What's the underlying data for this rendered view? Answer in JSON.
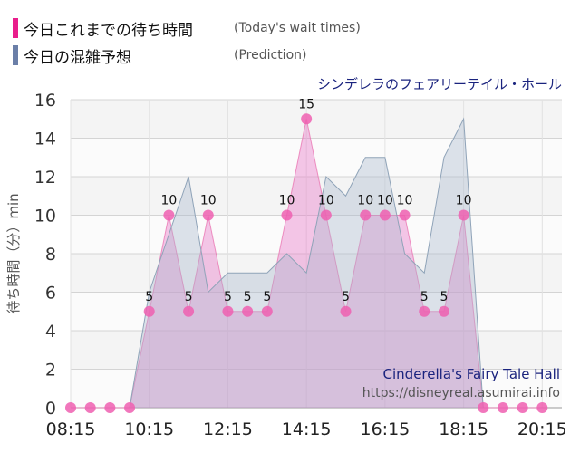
{
  "legend": [
    {
      "label": "今日これまでの待ち時間",
      "note": "(Today's wait times)",
      "color": "#e91e8c"
    },
    {
      "label": "今日の混雑予想",
      "note": "(Prediction)",
      "color": "#6b7fa8"
    }
  ],
  "colors": {
    "today_fill": "#e879c8",
    "today_line": "#e86aab",
    "today_point": "#ee5fb0",
    "prediction_fill": "#a8b8cc",
    "prediction_line": "#8fa3b8"
  },
  "attraction_name": "シンデレラのフェアリーテイル・ホール",
  "watermark": {
    "name_en": "Cinderella's Fairy Tale Hall",
    "site": "https://disneyreal.asumirai.info"
  },
  "chart_data": {
    "type": "area",
    "ylabel": "待ち時間（分）min",
    "ylim": [
      0,
      16
    ],
    "yticks": [
      0,
      2,
      4,
      6,
      8,
      10,
      12,
      14,
      16
    ],
    "xlim": [
      "08:15",
      "20:45"
    ],
    "xticks": [
      "08:15",
      "10:15",
      "12:15",
      "14:15",
      "16:15",
      "18:15",
      "20:15"
    ],
    "grid": true,
    "series": [
      {
        "name": "今日これまでの待ち時間",
        "points": [
          {
            "x": "08:15",
            "y": 0
          },
          {
            "x": "08:45",
            "y": 0
          },
          {
            "x": "09:15",
            "y": 0
          },
          {
            "x": "09:45",
            "y": 0
          },
          {
            "x": "10:15",
            "y": 5
          },
          {
            "x": "10:45",
            "y": 10
          },
          {
            "x": "11:15",
            "y": 5
          },
          {
            "x": "11:45",
            "y": 10
          },
          {
            "x": "12:15",
            "y": 5
          },
          {
            "x": "12:45",
            "y": 5
          },
          {
            "x": "13:15",
            "y": 5
          },
          {
            "x": "13:45",
            "y": 10
          },
          {
            "x": "14:15",
            "y": 15
          },
          {
            "x": "14:45",
            "y": 10
          },
          {
            "x": "15:15",
            "y": 5
          },
          {
            "x": "15:45",
            "y": 10
          },
          {
            "x": "16:15",
            "y": 10
          },
          {
            "x": "16:45",
            "y": 10
          },
          {
            "x": "17:15",
            "y": 5
          },
          {
            "x": "17:45",
            "y": 5
          },
          {
            "x": "18:15",
            "y": 10
          },
          {
            "x": "18:45",
            "y": 0
          },
          {
            "x": "19:15",
            "y": 0
          },
          {
            "x": "19:45",
            "y": 0
          },
          {
            "x": "20:15",
            "y": 0
          }
        ]
      },
      {
        "name": "今日の混雑予想",
        "points": [
          {
            "x": "09:45",
            "y": 0
          },
          {
            "x": "10:15",
            "y": 6
          },
          {
            "x": "10:45",
            "y": 9
          },
          {
            "x": "11:15",
            "y": 12
          },
          {
            "x": "11:45",
            "y": 6
          },
          {
            "x": "12:15",
            "y": 7
          },
          {
            "x": "12:45",
            "y": 7
          },
          {
            "x": "13:15",
            "y": 7
          },
          {
            "x": "13:45",
            "y": 8
          },
          {
            "x": "14:15",
            "y": 7
          },
          {
            "x": "14:45",
            "y": 12
          },
          {
            "x": "15:15",
            "y": 11
          },
          {
            "x": "15:45",
            "y": 13
          },
          {
            "x": "16:15",
            "y": 13
          },
          {
            "x": "16:45",
            "y": 8
          },
          {
            "x": "17:15",
            "y": 7
          },
          {
            "x": "17:45",
            "y": 13
          },
          {
            "x": "18:15",
            "y": 15
          },
          {
            "x": "18:45",
            "y": 0
          }
        ]
      }
    ]
  }
}
